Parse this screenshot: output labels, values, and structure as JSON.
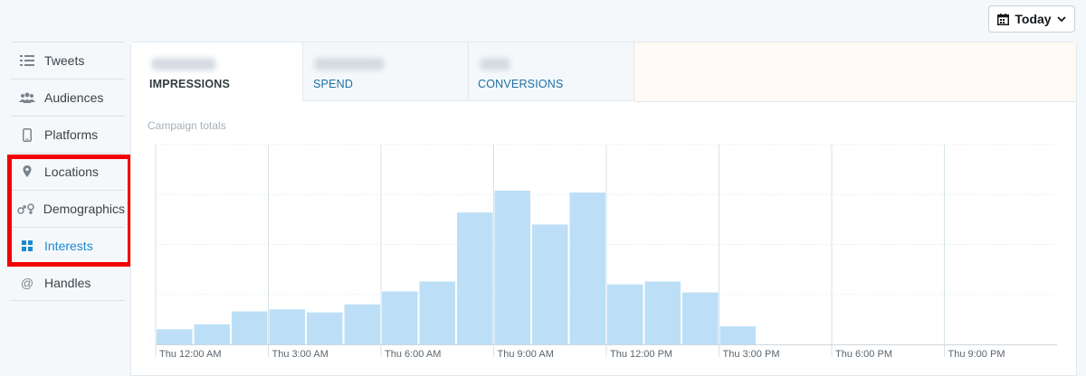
{
  "date_picker": {
    "label": "Today",
    "icon": "calendar-icon"
  },
  "sidebar": {
    "items": [
      {
        "label": "Tweets",
        "icon": "list-icon",
        "active": false
      },
      {
        "label": "Audiences",
        "icon": "people-icon",
        "active": false
      },
      {
        "label": "Platforms",
        "icon": "phone-icon",
        "active": false
      },
      {
        "label": "Locations",
        "icon": "location-pin-icon",
        "active": false
      },
      {
        "label": "Demographics",
        "icon": "gender-icon",
        "active": false
      },
      {
        "label": "Interests",
        "icon": "grid-icon",
        "active": true
      },
      {
        "label": "Handles",
        "icon": "at-icon",
        "active": false
      }
    ]
  },
  "tabs": [
    {
      "label": "IMPRESSIONS",
      "active": true
    },
    {
      "label": "SPEND",
      "active": false
    },
    {
      "label": "CONVERSIONS",
      "active": false
    }
  ],
  "chart_label": "Campaign totals",
  "colors": {
    "bar": "#bcdff7",
    "grid": "#d6e2ea",
    "active_link": "#1b8ad1",
    "highlight": "#f40000"
  },
  "chart_data": {
    "type": "bar",
    "x_tick_labels": [
      "Thu 12:00 AM",
      "Thu 3:00 AM",
      "Thu 6:00 AM",
      "Thu 9:00 AM",
      "Thu 12:00 PM",
      "Thu 3:00 PM",
      "Thu 6:00 PM",
      "Thu 9:00 PM"
    ],
    "bars_per_tick": 3,
    "values": [
      15,
      20,
      33,
      35,
      32,
      40,
      53,
      63,
      132,
      154,
      120,
      152,
      60,
      63,
      52,
      18,
      0,
      0,
      0,
      0,
      0,
      0,
      0,
      0
    ],
    "ylim": [
      0,
      200
    ],
    "y_gridlines": 4,
    "grid": true,
    "title": "",
    "xlabel": "",
    "ylabel": ""
  }
}
